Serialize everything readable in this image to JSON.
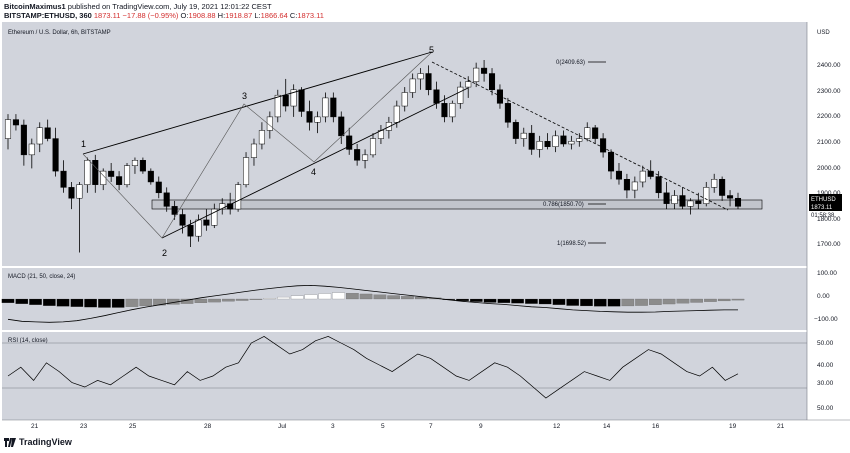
{
  "header": {
    "publisher": "BitcoinMaximus1",
    "published_text": "published on TradingView.com, July 19, 2021 12:01:22 CEST",
    "symbol": "BITSTAMP:ETHUSD, 360",
    "last": "1873.11",
    "change": "−17.88 (−0.95%)",
    "open_label": "O:",
    "open": "1908.88",
    "high_label": "H:",
    "high": "1918.87",
    "low_label": "L:",
    "low": "1866.64",
    "close_label": "C:",
    "close": "1873.11"
  },
  "main_pane": {
    "legend": "Ethereum / U.S. Dollar, 6h, BITSTAMP",
    "currency": "USD",
    "price_ticks": [
      "2500.00",
      "2400.00",
      "2300.00",
      "2200.00",
      "2100.00",
      "2000.00",
      "1900.00",
      "1800.00",
      "1700.00"
    ],
    "price_tag_symbol": "ETHUSD",
    "price_tag_value": "1873.11",
    "price_tag_countdown": "01:58:38",
    "fib_labels": [
      "0(2409.63)",
      "0.786(1850.70)",
      "1(1698.52)"
    ],
    "wave_labels": [
      "1",
      "2",
      "3",
      "4",
      "5"
    ]
  },
  "macd_pane": {
    "legend": "MACD (21, 50, close, 24)",
    "ticks": [
      "100.00",
      "0.00",
      "−100.00"
    ]
  },
  "rsi_pane": {
    "legend": "RSI (14, close)",
    "ticks": [
      "50.00",
      "40.00",
      "30.00",
      "50.00"
    ]
  },
  "x_axis": {
    "labels": [
      "21",
      "23",
      "25",
      "28",
      "Jul",
      "3",
      "5",
      "7",
      "9",
      "12",
      "14",
      "16",
      "19",
      "21"
    ]
  },
  "footer": {
    "brand": "TradingView"
  },
  "colors": {
    "pane_bg": "#d1d4dc",
    "candle_up": "#ffffff",
    "candle_down": "#000000",
    "wick": "#000000",
    "macd_hist_dark": "#000000",
    "macd_hist_gray": "#8c8c8c",
    "macd_hist_light": "#ffffff",
    "support_box": "#c2c5cc"
  },
  "chart_data": [
    {
      "type": "candlestick",
      "title": "Ethereum / U.S. Dollar, 6h, BITSTAMP",
      "ylabel": "USD",
      "ylim": [
        1650,
        2550
      ],
      "grid": false,
      "candles": [
        [
          2120,
          2210,
          2080,
          2190
        ],
        [
          2190,
          2210,
          2150,
          2170
        ],
        [
          2170,
          2190,
          2020,
          2060
        ],
        [
          2060,
          2120,
          2010,
          2100
        ],
        [
          2100,
          2180,
          2070,
          2160
        ],
        [
          2160,
          2190,
          2110,
          2120
        ],
        [
          2120,
          2160,
          1980,
          2000
        ],
        [
          2000,
          2040,
          1920,
          1940
        ],
        [
          1940,
          1960,
          1860,
          1900
        ],
        [
          1900,
          1960,
          1700,
          1950
        ],
        [
          1950,
          2050,
          1920,
          2040
        ],
        [
          2040,
          2060,
          1920,
          1950
        ],
        [
          1950,
          2010,
          1930,
          2000
        ],
        [
          2000,
          2030,
          1960,
          1980
        ],
        [
          1980,
          2000,
          1930,
          1950
        ],
        [
          1950,
          2030,
          1940,
          2020
        ],
        [
          2020,
          2050,
          1990,
          2040
        ],
        [
          2040,
          2050,
          1990,
          2000
        ],
        [
          2000,
          2010,
          1950,
          1960
        ],
        [
          1960,
          1980,
          1900,
          1920
        ],
        [
          1920,
          1940,
          1850,
          1870
        ],
        [
          1870,
          1890,
          1820,
          1840
        ],
        [
          1840,
          1860,
          1770,
          1800
        ],
        [
          1800,
          1820,
          1720,
          1760
        ],
        [
          1760,
          1840,
          1740,
          1820
        ],
        [
          1820,
          1860,
          1780,
          1800
        ],
        [
          1800,
          1880,
          1790,
          1860
        ],
        [
          1860,
          1900,
          1840,
          1880
        ],
        [
          1880,
          1920,
          1840,
          1860
        ],
        [
          1860,
          1960,
          1850,
          1950
        ],
        [
          1950,
          2070,
          1940,
          2050
        ],
        [
          2050,
          2120,
          2020,
          2100
        ],
        [
          2100,
          2180,
          2080,
          2150
        ],
        [
          2150,
          2220,
          2120,
          2200
        ],
        [
          2200,
          2300,
          2180,
          2280
        ],
        [
          2280,
          2340,
          2220,
          2240
        ],
        [
          2240,
          2320,
          2200,
          2300
        ],
        [
          2300,
          2310,
          2200,
          2220
        ],
        [
          2220,
          2260,
          2150,
          2180
        ],
        [
          2180,
          2220,
          2140,
          2200
        ],
        [
          2200,
          2290,
          2180,
          2270
        ],
        [
          2270,
          2290,
          2180,
          2200
        ],
        [
          2200,
          2220,
          2100,
          2130
        ],
        [
          2130,
          2160,
          2060,
          2080
        ],
        [
          2080,
          2100,
          2020,
          2040
        ],
        [
          2040,
          2080,
          2010,
          2060
        ],
        [
          2060,
          2140,
          2050,
          2120
        ],
        [
          2120,
          2170,
          2100,
          2150
        ],
        [
          2150,
          2200,
          2120,
          2180
        ],
        [
          2180,
          2260,
          2160,
          2240
        ],
        [
          2240,
          2310,
          2220,
          2290
        ],
        [
          2290,
          2360,
          2270,
          2340
        ],
        [
          2340,
          2380,
          2300,
          2360
        ],
        [
          2360,
          2390,
          2280,
          2300
        ],
        [
          2300,
          2330,
          2230,
          2250
        ],
        [
          2250,
          2280,
          2180,
          2200
        ],
        [
          2200,
          2260,
          2180,
          2250
        ],
        [
          2250,
          2330,
          2230,
          2310
        ],
        [
          2310,
          2350,
          2270,
          2330
        ],
        [
          2330,
          2400,
          2310,
          2380
        ],
        [
          2380,
          2410,
          2330,
          2360
        ],
        [
          2360,
          2380,
          2280,
          2300
        ],
        [
          2300,
          2320,
          2230,
          2250
        ],
        [
          2250,
          2270,
          2160,
          2180
        ],
        [
          2180,
          2190,
          2100,
          2120
        ],
        [
          2120,
          2160,
          2090,
          2140
        ],
        [
          2140,
          2170,
          2060,
          2080
        ],
        [
          2080,
          2130,
          2050,
          2110
        ],
        [
          2110,
          2140,
          2080,
          2090
        ],
        [
          2090,
          2150,
          2070,
          2130
        ],
        [
          2130,
          2150,
          2090,
          2100
        ],
        [
          2100,
          2130,
          2080,
          2110
        ],
        [
          2110,
          2140,
          2090,
          2120
        ],
        [
          2120,
          2180,
          2110,
          2160
        ],
        [
          2160,
          2170,
          2100,
          2120
        ],
        [
          2120,
          2140,
          2050,
          2070
        ],
        [
          2070,
          2080,
          1970,
          2000
        ],
        [
          2000,
          2030,
          1950,
          1970
        ],
        [
          1970,
          1990,
          1900,
          1930
        ],
        [
          1930,
          1980,
          1900,
          1960
        ],
        [
          1960,
          2020,
          1940,
          2000
        ],
        [
          2000,
          2040,
          1970,
          1980
        ],
        [
          1980,
          2000,
          1900,
          1920
        ],
        [
          1920,
          1960,
          1860,
          1880
        ],
        [
          1880,
          1930,
          1860,
          1910
        ],
        [
          1910,
          1940,
          1860,
          1870
        ],
        [
          1870,
          1900,
          1840,
          1890
        ],
        [
          1890,
          1920,
          1860,
          1880
        ],
        [
          1880,
          1960,
          1870,
          1940
        ],
        [
          1940,
          1990,
          1920,
          1970
        ],
        [
          1970,
          1980,
          1890,
          1910
        ],
        [
          1910,
          1930,
          1870,
          1900
        ],
        [
          1900,
          1920,
          1860,
          1870
        ]
      ]
    },
    {
      "type": "bar",
      "title": "MACD (21, 50, close, 24)",
      "ylim": [
        -160,
        160
      ],
      "histogram": [
        -20,
        -25,
        -30,
        -35,
        -38,
        -40,
        -42,
        -44,
        -44,
        -40,
        -36,
        -32,
        -28,
        -24,
        -20,
        -16,
        -12,
        -8,
        -4,
        4,
        10,
        16,
        22,
        28,
        32,
        30,
        26,
        22,
        18,
        14,
        10,
        6,
        -4,
        -10,
        -14,
        -18,
        -20,
        -22,
        -24,
        -26,
        -30,
        -34,
        -36,
        -38,
        -38,
        -36,
        -34,
        -30,
        -26,
        -22,
        -18,
        -14,
        -10,
        -6
      ],
      "macd_line": [
        -105,
        -115,
        -118,
        -120,
        -118,
        -112,
        -100,
        -86,
        -70,
        -55,
        -42,
        -30,
        -18,
        -6,
        6,
        16,
        26,
        36,
        46,
        54,
        62,
        68,
        70,
        66,
        60,
        52,
        44,
        36,
        28,
        20,
        12,
        4,
        -4,
        -12,
        -18,
        -24,
        -28,
        -34,
        -40,
        -44,
        -50,
        -56,
        -60,
        -64,
        -66,
        -68,
        -68,
        -67,
        -64,
        -62,
        -60,
        -58,
        -56,
        -56
      ]
    },
    {
      "type": "line",
      "title": "RSI (14, close)",
      "ylim": [
        20,
        60
      ],
      "values": [
        40,
        44,
        38,
        46,
        42,
        37,
        35,
        38,
        36,
        40,
        44,
        40,
        38,
        36,
        42,
        38,
        40,
        44,
        46,
        55,
        58,
        54,
        50,
        52,
        56,
        58,
        55,
        52,
        48,
        45,
        42,
        46,
        50,
        48,
        44,
        40,
        38,
        42,
        46,
        44,
        40,
        35,
        30,
        34,
        38,
        42,
        40,
        38,
        44,
        48,
        52,
        50,
        46,
        42,
        40,
        44,
        38,
        41
      ]
    }
  ]
}
